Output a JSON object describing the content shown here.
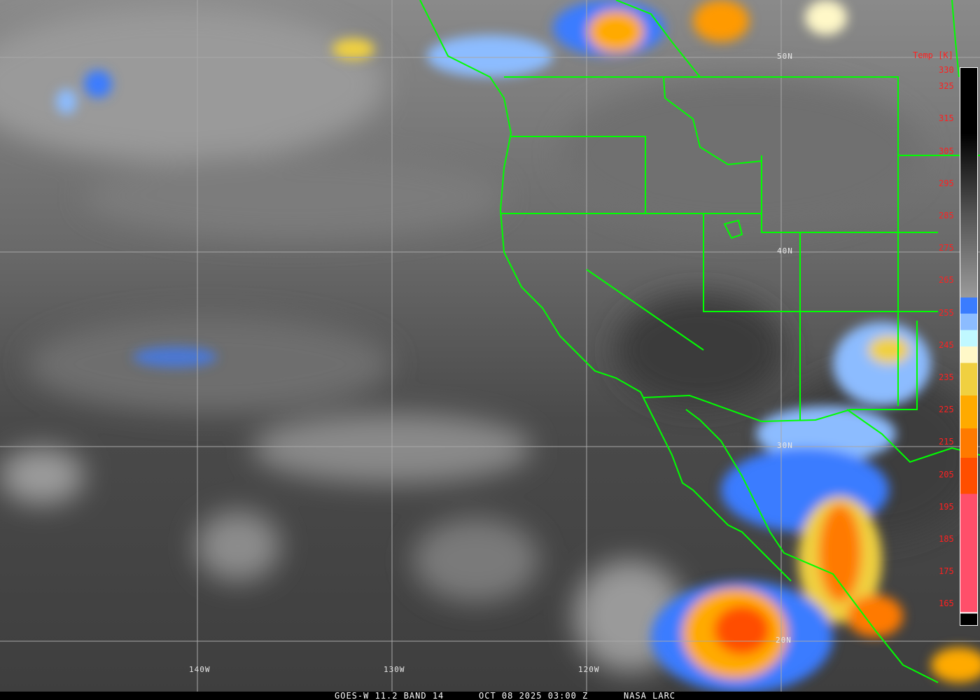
{
  "caption": {
    "product": "GOES-W 11.2 BAND 14",
    "datetime": "OCT 08 2025 03:00 Z",
    "credit": "NASA LARC"
  },
  "latitude_labels": [
    "50N",
    "40N",
    "30N",
    "20N"
  ],
  "longitude_labels": [
    "140W",
    "130W",
    "120W"
  ],
  "colorbar": {
    "title": "Temp [K]",
    "ticks": [
      "330",
      "325",
      "315",
      "305",
      "295",
      "285",
      "275",
      "265",
      "255",
      "245",
      "235",
      "225",
      "215",
      "205",
      "195",
      "185",
      "175",
      "165"
    ],
    "colors": {
      "warm": "#000000",
      "mid": "#9a9a9a",
      "blue": "#3a7cff",
      "light_blue": "#8cbcff",
      "cyan": "#c0f8ff",
      "cream": "#fff8c8",
      "yellow": "#f0d040",
      "orange": "#ffaa00",
      "dark_orange": "#ff7a00",
      "red_orange": "#ff4e00",
      "pink": "#ff4f6a"
    }
  },
  "borders_color": "#00ff00"
}
